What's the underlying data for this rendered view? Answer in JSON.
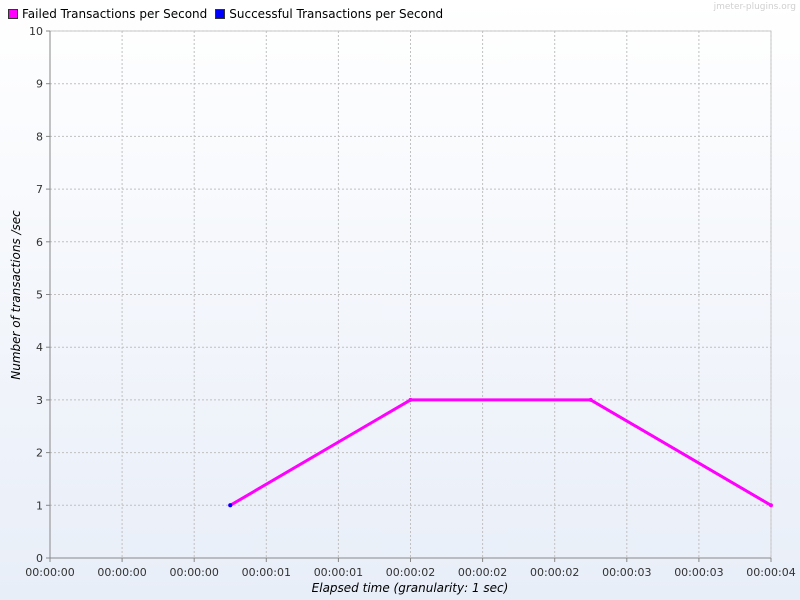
{
  "watermark": "jmeter-plugins.org",
  "colors": {
    "failed": "#ff00ff",
    "successful": "#0000ff",
    "grid": "#c0c0c0",
    "background_top": "#ffffff",
    "background_bottom": "#e8eef8"
  },
  "chart_data": {
    "type": "line",
    "title": "",
    "xlabel": "Elapsed time (granularity: 1 sec)",
    "ylabel": "Number of transactions /sec",
    "ylim": [
      0,
      10
    ],
    "xlim": [
      0,
      4
    ],
    "yticks": [
      0,
      1,
      2,
      3,
      4,
      5,
      6,
      7,
      8,
      9,
      10
    ],
    "xtick_positions": [
      0,
      0.4,
      0.8,
      1.2,
      1.6,
      2.0,
      2.4,
      2.8,
      3.2,
      3.6,
      4.0
    ],
    "xtick_labels": [
      "00:00:00",
      "00:00:00",
      "00:00:00",
      "00:00:01",
      "00:00:01",
      "00:00:02",
      "00:00:02",
      "00:00:02",
      "00:00:03",
      "00:00:03",
      "00:00:04"
    ],
    "grid": true,
    "legend_position": "top-left",
    "series": [
      {
        "name": "Failed Transactions per Second",
        "color": "#ff00ff",
        "x": [
          1,
          2,
          3,
          4
        ],
        "y": [
          1,
          3,
          3,
          1
        ]
      },
      {
        "name": "Successful Transactions per Second",
        "color": "#0000ff",
        "x": [
          1
        ],
        "y": [
          1
        ]
      }
    ]
  }
}
